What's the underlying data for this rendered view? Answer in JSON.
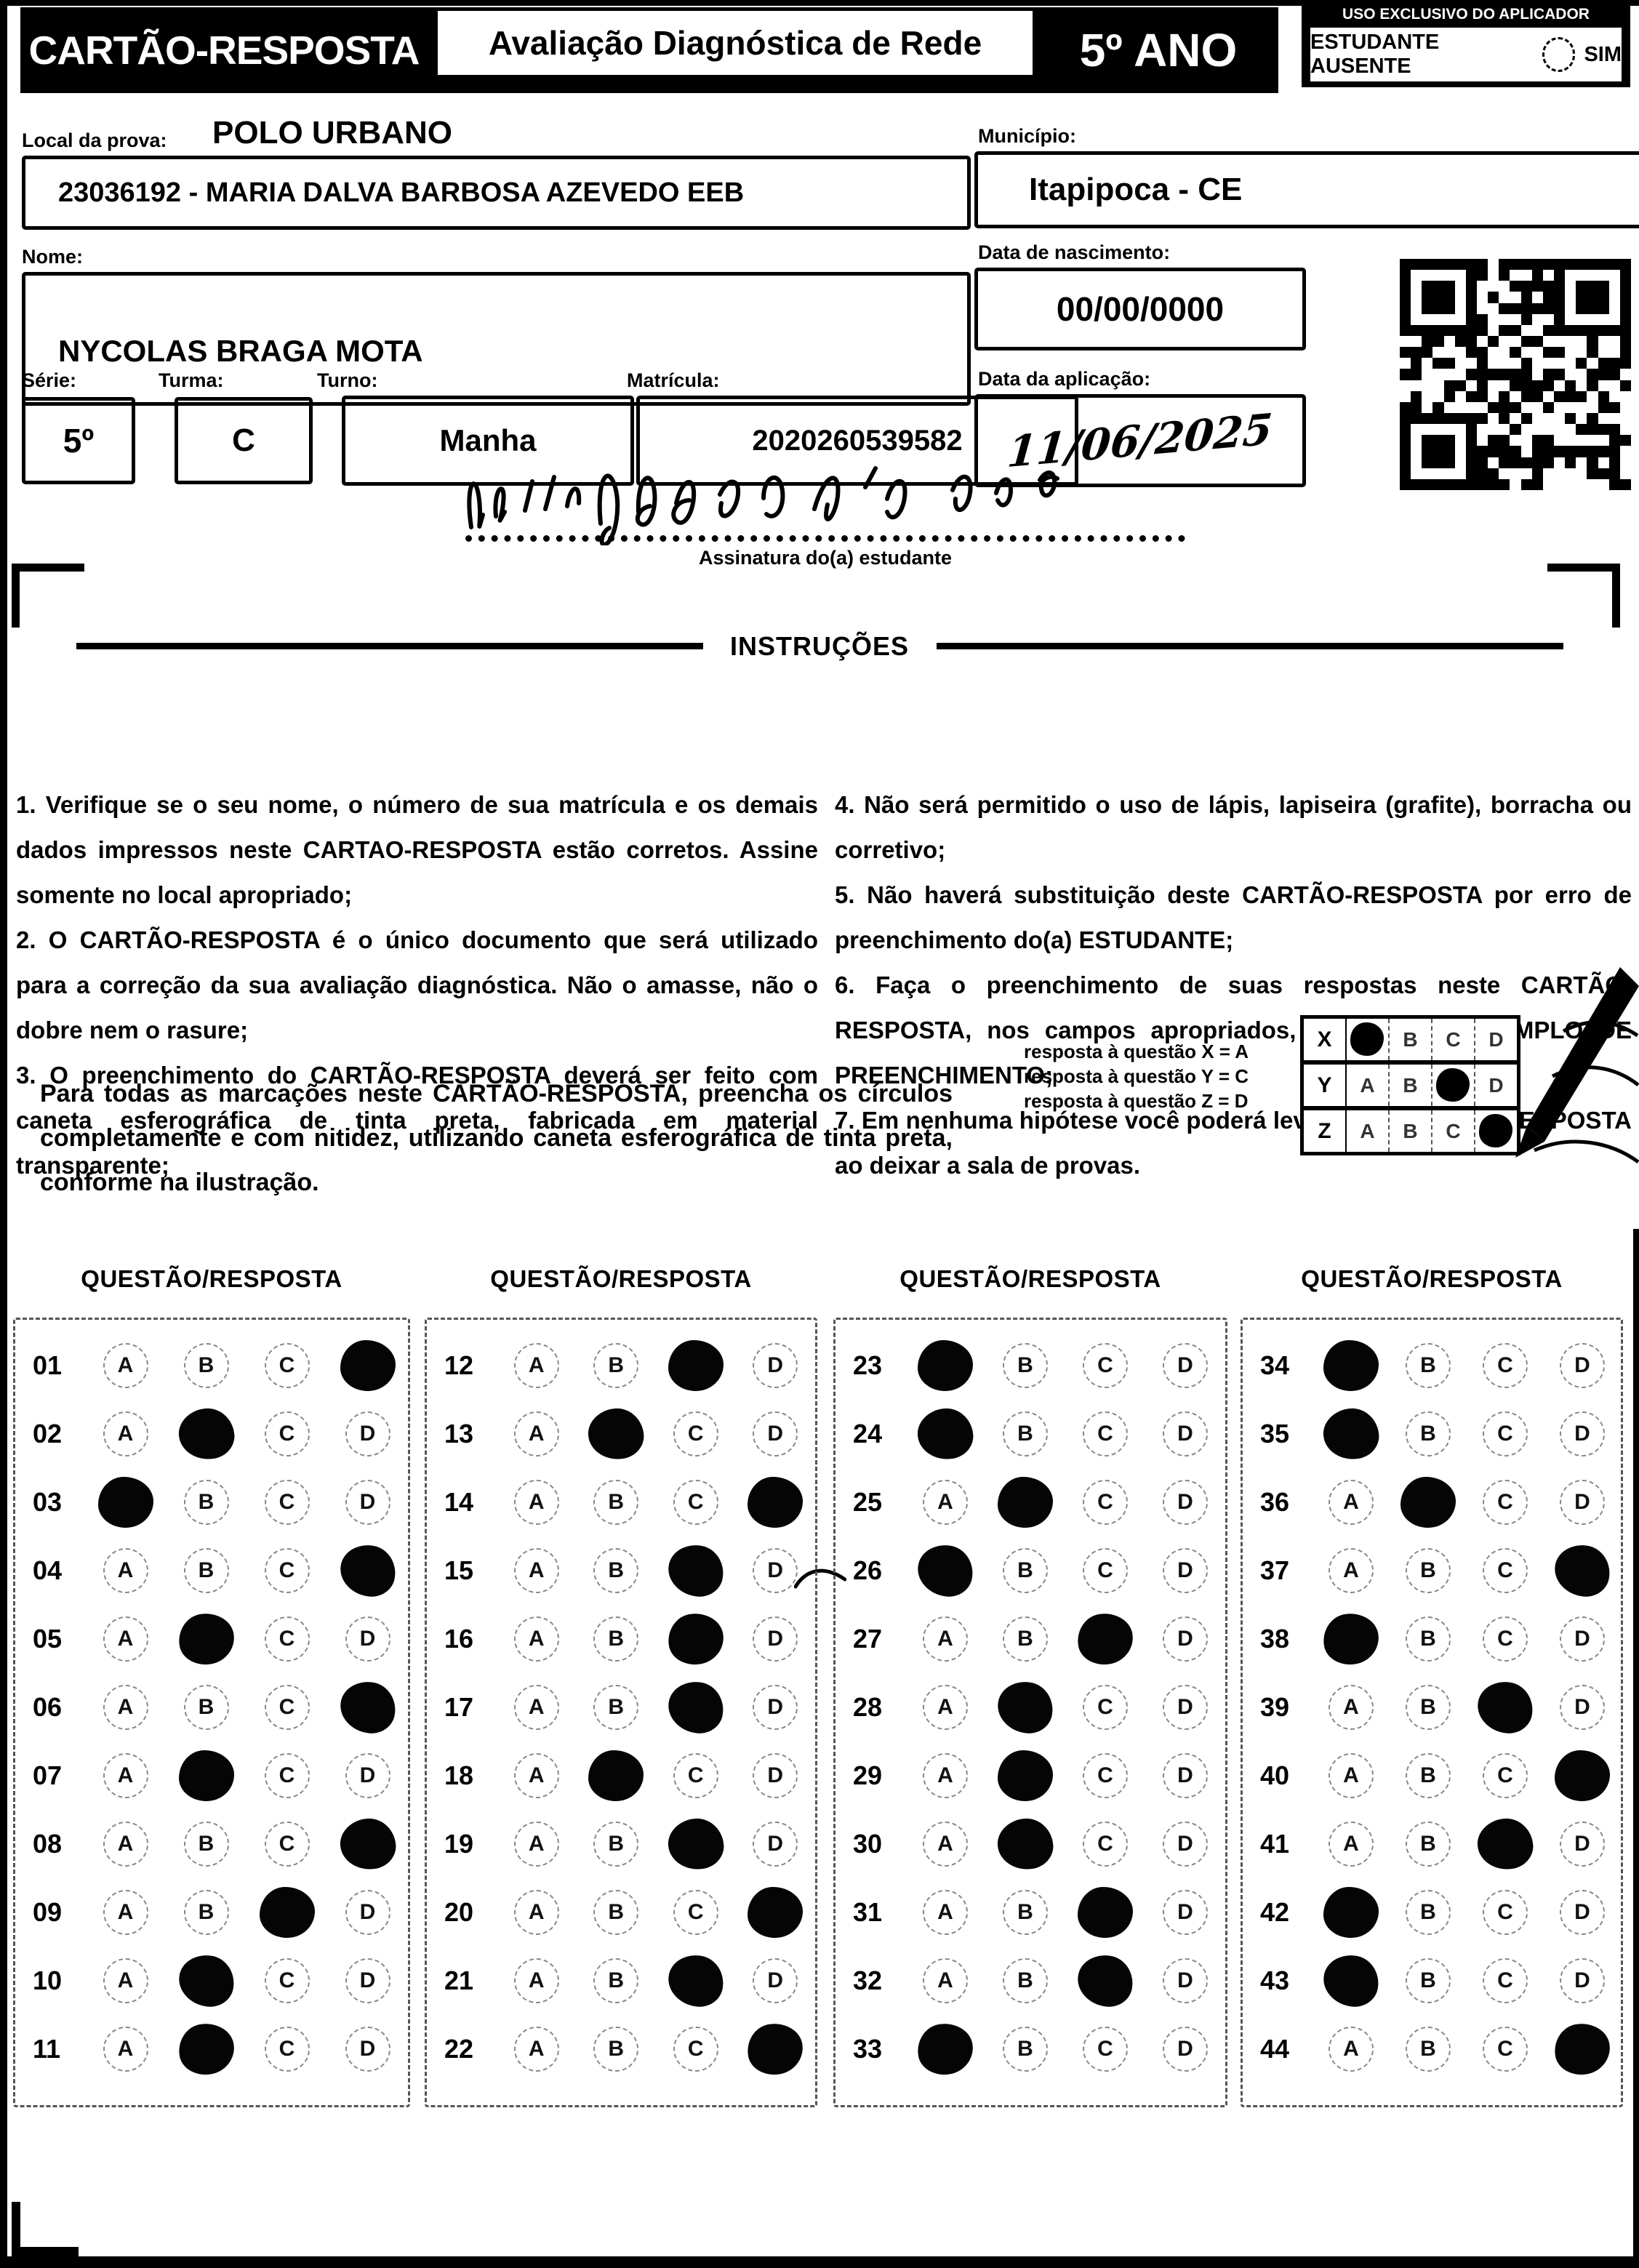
{
  "options": [
    "A",
    "B",
    "C",
    "D"
  ],
  "header": {
    "card_title": "CARTÃO-RESPOSTA",
    "assessment_title": "Avaliação Diagnóstica de Rede",
    "grade": "5º ANO",
    "applicator_box_title": "USO EXCLUSIVO DO APLICADOR",
    "absent_label": "ESTUDANTE AUSENTE",
    "absent_option": "SIM"
  },
  "form": {
    "local_label": "Local da prova:",
    "local_value": "POLO URBANO",
    "school_value": "23036192 - MARIA DALVA BARBOSA AZEVEDO EEB",
    "municipio_label": "Município:",
    "municipio_value": "Itapipoca - CE",
    "nome_label": "Nome:",
    "nome_value": "NYCOLAS BRAGA MOTA",
    "nascimento_label": "Data de nascimento:",
    "nascimento_value": "00/00/0000",
    "serie_label": "Série:",
    "serie_value": "5º",
    "turma_label": "Turma:",
    "turma_value": "C",
    "turno_label": "Turno:",
    "turno_value": "Manha",
    "matricula_label": "Matrícula:",
    "matricula_value": "2020260539582",
    "aplicacao_label": "Data da aplicação:",
    "aplicacao_value": "11/06/2025"
  },
  "signature": {
    "label": "Assinatura do(a) estudante"
  },
  "instructions": {
    "title": "INSTRUÇÕES",
    "left": [
      "1. Verifique se o seu nome, o número de sua matrícula e os demais dados impressos neste CARTAO-RESPOSTA estão corretos. Assine somente no local apropriado;",
      "2. O CARTÃO-RESPOSTA é o único documento que será utilizado para a correção da sua avaliação diagnóstica. Não o amasse, não o dobre nem o rasure;",
      "3. O preenchimento do CARTÃO-RESPOSTA deverá ser feito com caneta esferográfica de tinta preta, fabricada em material transparente;"
    ],
    "right": [
      "4. Não será permitido o uso de lápis, lapiseira (grafite), borracha ou corretivo;",
      "5. Não haverá substituição deste CARTÃO-RESPOSTA por erro de preenchimento do(a) ESTUDANTE;",
      "6. Faça o preenchimento de suas respostas neste CARTÃO-RESPOSTA, nos campos apropriados, conforme o EXEMPLO DE PREENCHIMENTO;",
      "7. Em nenhuma hipótese você poderá levar este CARTÃO-RESPOSTA ao deixar a sala de provas."
    ]
  },
  "example": {
    "text": "Para todas as marcações neste CARTÃO-RESPOSTA, preencha os círculos completamente e com nitidez, utilizando caneta esferográfica de tinta preta, conforme na ilustração.",
    "legend": [
      "resposta à questão X = A",
      "resposta à questão Y = C",
      "resposta à questão Z = D"
    ],
    "rows": [
      {
        "label": "X",
        "answer": "A"
      },
      {
        "label": "Y",
        "answer": "C"
      },
      {
        "label": "Z",
        "answer": "D"
      }
    ]
  },
  "answers": {
    "column_header": "QUESTÃO/RESPOSTA",
    "columns": [
      {
        "questions": [
          {
            "num": "01",
            "answer": "D"
          },
          {
            "num": "02",
            "answer": "B"
          },
          {
            "num": "03",
            "answer": "A"
          },
          {
            "num": "04",
            "answer": "D"
          },
          {
            "num": "05",
            "answer": "B"
          },
          {
            "num": "06",
            "answer": "D"
          },
          {
            "num": "07",
            "answer": "B"
          },
          {
            "num": "08",
            "answer": "D"
          },
          {
            "num": "09",
            "answer": "C"
          },
          {
            "num": "10",
            "answer": "B"
          },
          {
            "num": "11",
            "answer": "B"
          }
        ]
      },
      {
        "questions": [
          {
            "num": "12",
            "answer": "C"
          },
          {
            "num": "13",
            "answer": "B"
          },
          {
            "num": "14",
            "answer": "D"
          },
          {
            "num": "15",
            "answer": "C"
          },
          {
            "num": "16",
            "answer": "C"
          },
          {
            "num": "17",
            "answer": "C"
          },
          {
            "num": "18",
            "answer": "B"
          },
          {
            "num": "19",
            "answer": "C"
          },
          {
            "num": "20",
            "answer": "D"
          },
          {
            "num": "21",
            "answer": "C"
          },
          {
            "num": "22",
            "answer": "D"
          }
        ]
      },
      {
        "questions": [
          {
            "num": "23",
            "answer": "A"
          },
          {
            "num": "24",
            "answer": "A"
          },
          {
            "num": "25",
            "answer": "B"
          },
          {
            "num": "26",
            "answer": "A"
          },
          {
            "num": "27",
            "answer": "C"
          },
          {
            "num": "28",
            "answer": "B"
          },
          {
            "num": "29",
            "answer": "B"
          },
          {
            "num": "30",
            "answer": "B"
          },
          {
            "num": "31",
            "answer": "C"
          },
          {
            "num": "32",
            "answer": "C"
          },
          {
            "num": "33",
            "answer": "A"
          }
        ]
      },
      {
        "questions": [
          {
            "num": "34",
            "answer": "A"
          },
          {
            "num": "35",
            "answer": "A"
          },
          {
            "num": "36",
            "answer": "B"
          },
          {
            "num": "37",
            "answer": "D"
          },
          {
            "num": "38",
            "answer": "A"
          },
          {
            "num": "39",
            "answer": "C"
          },
          {
            "num": "40",
            "answer": "D"
          },
          {
            "num": "41",
            "answer": "C"
          },
          {
            "num": "42",
            "answer": "A"
          },
          {
            "num": "43",
            "answer": "A"
          },
          {
            "num": "44",
            "answer": "D"
          }
        ]
      }
    ]
  }
}
